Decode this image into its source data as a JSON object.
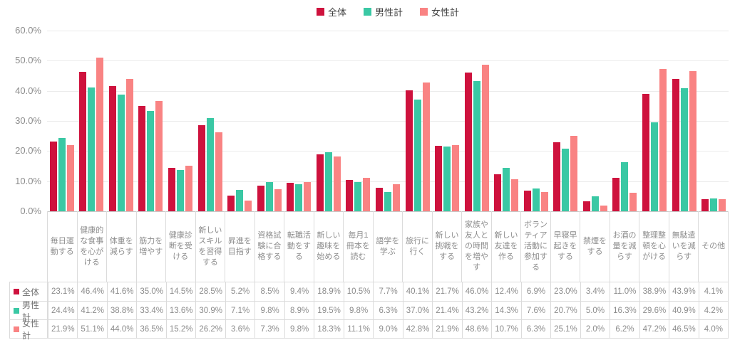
{
  "chart_data": {
    "type": "bar",
    "title": "",
    "categories": [
      "毎日運動する",
      "健康的な食事を心がける",
      "体重を減らす",
      "筋力を増やす",
      "健康診断を受ける",
      "新しいスキルを習得する",
      "昇進を目指す",
      "資格試験に合格する",
      "転職活動をする",
      "新しい趣味を始める",
      "毎月1冊本を読む",
      "語学を学ぶ",
      "旅行に行く",
      "新しい挑戦をする",
      "家族や友人との時間を増やす",
      "新しい友達を作る",
      "ボランティア活動に参加する",
      "早寝早起きをする",
      "禁煙をする",
      "お酒の量を減らす",
      "整理整頓を心がける",
      "無駄遣いを減らす",
      "その他"
    ],
    "series": [
      {
        "name": "全体",
        "color": "#ce123d",
        "values": [
          23.1,
          46.4,
          41.6,
          35.0,
          14.5,
          28.5,
          5.2,
          8.5,
          9.4,
          18.9,
          10.5,
          7.7,
          40.1,
          21.7,
          46.0,
          12.4,
          6.9,
          23.0,
          3.4,
          11.0,
          38.9,
          43.9,
          4.1
        ]
      },
      {
        "name": "男性計",
        "color": "#3ac8a4",
        "values": [
          24.4,
          41.2,
          38.8,
          33.4,
          13.6,
          30.9,
          7.1,
          9.8,
          8.9,
          19.5,
          9.8,
          6.3,
          37.0,
          21.4,
          43.2,
          14.3,
          7.6,
          20.7,
          5.0,
          16.3,
          29.6,
          40.9,
          4.2
        ]
      },
      {
        "name": "女性計",
        "color": "#f98383",
        "values": [
          21.9,
          51.1,
          44.0,
          36.5,
          15.2,
          26.2,
          3.6,
          7.3,
          9.8,
          18.3,
          11.1,
          9.0,
          42.8,
          21.9,
          48.6,
          10.7,
          6.3,
          25.1,
          2.0,
          6.2,
          47.2,
          46.5,
          4.0
        ]
      }
    ],
    "ylim": [
      0,
      60
    ],
    "yticks": [
      0,
      10,
      20,
      30,
      40,
      50,
      60
    ],
    "ytick_labels": [
      "0.0%",
      "10.0%",
      "20.0%",
      "30.0%",
      "40.0%",
      "50.0%",
      "60.0%"
    ],
    "value_suffix": "%",
    "grid": true,
    "legend_position": "top",
    "table_shown": true
  },
  "colors": {
    "grid": "#ebebeb",
    "axis_line": "#c9c9c9",
    "text_gray": "#8c8c8c",
    "legend_text": "#404040",
    "table_border": "#dbdbdb"
  }
}
